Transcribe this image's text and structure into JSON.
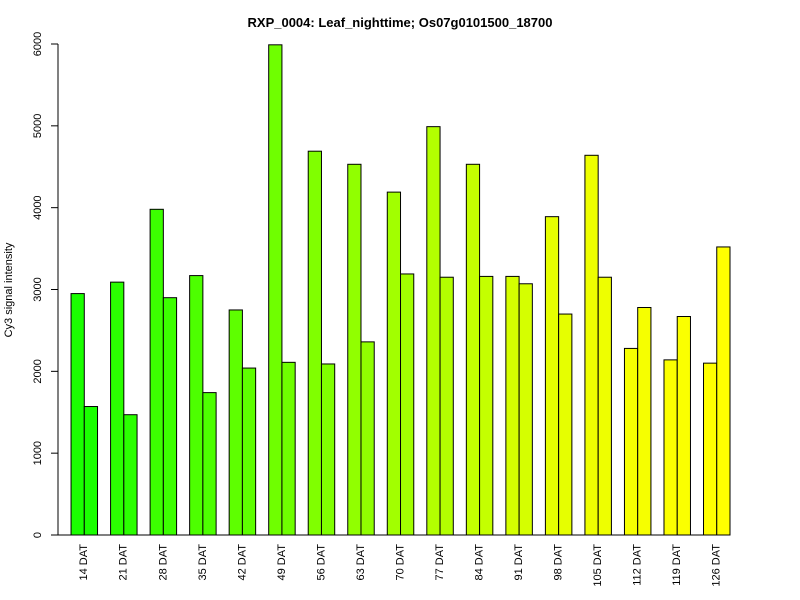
{
  "chart_data": {
    "type": "bar",
    "title": "RXP_0004: Leaf_nighttime; Os07g0101500_18700",
    "xlabel": "",
    "ylabel": "Cy3 signal intensity",
    "ylim": [
      0,
      6000
    ],
    "yticks": [
      0,
      1000,
      2000,
      3000,
      4000,
      5000,
      6000
    ],
    "categories": [
      "14 DAT",
      "21 DAT",
      "28 DAT",
      "35 DAT",
      "42 DAT",
      "49 DAT",
      "56 DAT",
      "63 DAT",
      "70 DAT",
      "77 DAT",
      "84 DAT",
      "91 DAT",
      "98 DAT",
      "105 DAT",
      "112 DAT",
      "119 DAT",
      "126 DAT"
    ],
    "series": [
      {
        "values": [
          2950,
          3090,
          3980,
          3170,
          2750,
          5990,
          4690,
          4530,
          4190,
          4990,
          4530,
          3160,
          3890,
          4640,
          2280,
          2140,
          2100
        ]
      },
      {
        "values": [
          1570,
          1470,
          2900,
          1740,
          2040,
          2110,
          2090,
          2360,
          3190,
          3150,
          3160,
          3070,
          2700,
          3150,
          2780,
          2670,
          3520
        ]
      }
    ],
    "colors": [
      "#1aff00",
      "#2bff00",
      "#3cff00",
      "#4dff00",
      "#5eff00",
      "#6fff00",
      "#80ff00",
      "#91ff00",
      "#a2ff00",
      "#b3ff00",
      "#c4ff00",
      "#d5ff00",
      "#e6ff00",
      "#eeff00",
      "#f6ff00",
      "#fbff00",
      "#ffff00"
    ],
    "grid": false,
    "legend": "none"
  }
}
